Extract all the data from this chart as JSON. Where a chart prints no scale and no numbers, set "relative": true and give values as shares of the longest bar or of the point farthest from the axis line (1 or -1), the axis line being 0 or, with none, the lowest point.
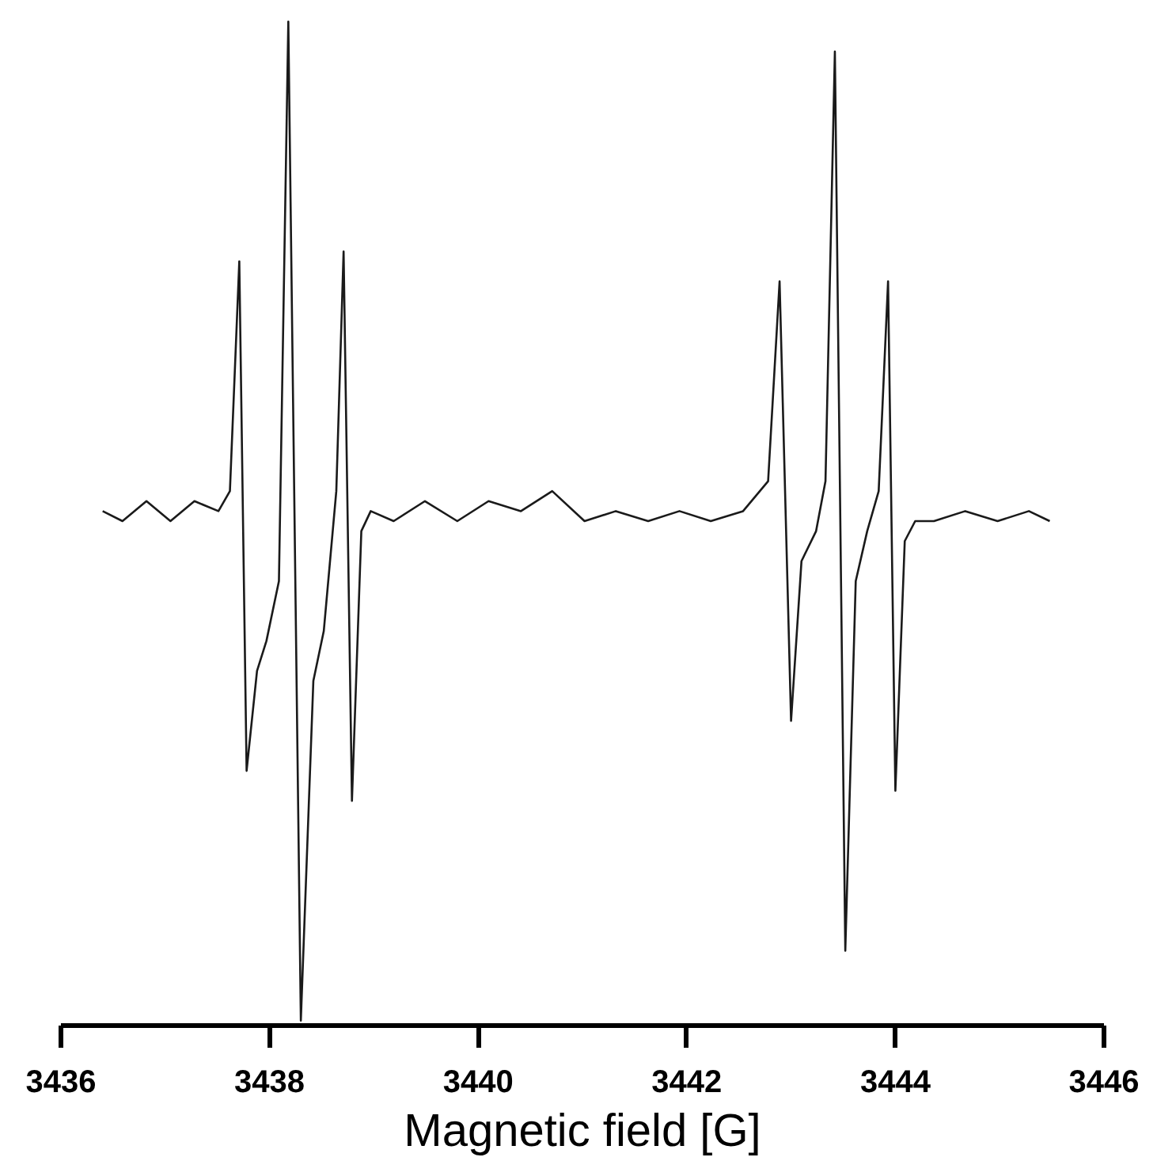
{
  "chart_data": {
    "type": "line",
    "relative": true,
    "xlabel": "Magnetic field [G]",
    "xlim": [
      3436,
      3446
    ],
    "xticks": [
      3436,
      3438,
      3440,
      3442,
      3444,
      3446
    ],
    "grid": false,
    "marker": "none",
    "line_style": "solid",
    "series": [
      {
        "color": "#1a1a1a",
        "x": [
          3436.4,
          3436.59,
          3436.82,
          3437.05,
          3437.28,
          3437.51,
          3437.62,
          3437.71,
          3437.78,
          3437.88,
          3437.97,
          3438.09,
          3438.18,
          3438.3,
          3438.42,
          3438.52,
          3438.64,
          3438.71,
          3438.79,
          3438.88,
          3438.97,
          3439.19,
          3439.49,
          3439.8,
          3440.1,
          3440.41,
          3440.71,
          3441.02,
          3441.32,
          3441.63,
          3441.93,
          3442.23,
          3442.54,
          3442.78,
          3442.89,
          3443.0,
          3443.1,
          3443.24,
          3443.33,
          3443.42,
          3443.52,
          3443.62,
          3443.73,
          3443.84,
          3443.93,
          3444.0,
          3444.09,
          3444.19,
          3444.37,
          3444.67,
          3444.98,
          3445.28,
          3445.48
        ],
        "values": [
          0.51,
          0.5,
          0.52,
          0.5,
          0.52,
          0.51,
          0.53,
          0.76,
          0.25,
          0.35,
          0.38,
          0.44,
          1.0,
          0.0,
          0.34,
          0.39,
          0.53,
          0.77,
          0.22,
          0.49,
          0.51,
          0.5,
          0.52,
          0.5,
          0.52,
          0.51,
          0.53,
          0.5,
          0.51,
          0.5,
          0.51,
          0.5,
          0.51,
          0.54,
          0.74,
          0.3,
          0.46,
          0.49,
          0.54,
          0.97,
          0.07,
          0.44,
          0.49,
          0.53,
          0.74,
          0.23,
          0.48,
          0.5,
          0.5,
          0.51,
          0.5,
          0.51,
          0.5
        ]
      }
    ]
  }
}
